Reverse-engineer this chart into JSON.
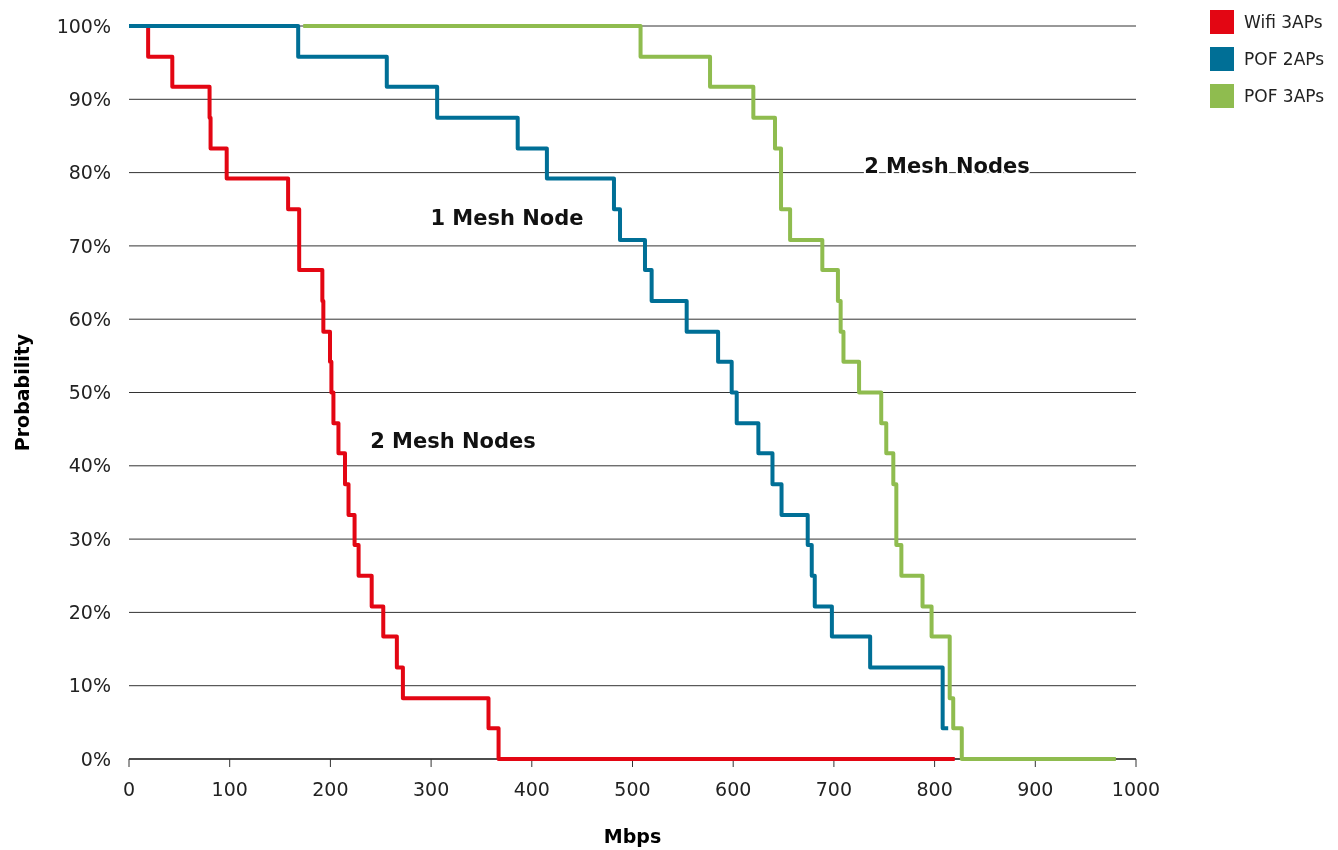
{
  "chart_data": {
    "type": "step",
    "xlabel": "Mbps",
    "ylabel": "Probability",
    "xlim": [
      0,
      1000
    ],
    "xticks": [
      0,
      100,
      200,
      300,
      400,
      500,
      600,
      700,
      800,
      900,
      1000
    ],
    "ylim": [
      0,
      100
    ],
    "yticks": [
      {
        "value": 0,
        "label": "0%"
      },
      {
        "value": 10,
        "label": "10%"
      },
      {
        "value": 20,
        "label": "20%"
      },
      {
        "value": 30,
        "label": "30%"
      },
      {
        "value": 40,
        "label": "40%"
      },
      {
        "value": 50,
        "label": "50%"
      },
      {
        "value": 60,
        "label": "60%"
      },
      {
        "value": 70,
        "label": "70%"
      },
      {
        "value": 80,
        "label": "80%"
      },
      {
        "value": 90,
        "label": "90%"
      },
      {
        "value": 100,
        "label": "100%"
      }
    ],
    "grid": "y",
    "legend": "top right",
    "marker": "none",
    "line_style": "solid",
    "series": [
      {
        "name": "Wifi 3APs",
        "color": "#e30613",
        "x": [
          19,
          19,
          43,
          80,
          81,
          97,
          158,
          169,
          192,
          193,
          199.6,
          201,
          203,
          208,
          214.5,
          218,
          224,
          228,
          241,
          252.5,
          266,
          272,
          357,
          367,
          820
        ],
        "values": [
          100,
          95.8,
          91.7,
          87.5,
          83.3,
          79.2,
          75,
          66.7,
          62.5,
          58.3,
          54.2,
          50,
          45.8,
          41.7,
          37.5,
          33.3,
          29.2,
          25,
          20.8,
          16.7,
          12.5,
          8.3,
          4.2,
          0,
          0
        ]
      },
      {
        "name": "POF 2APs",
        "color": "#006f96",
        "x": [
          0,
          168,
          256,
          306,
          386,
          415,
          481.6,
          487.6,
          512.4,
          519,
          553.8,
          585,
          598.5,
          603.5,
          625,
          639,
          648,
          674,
          678,
          681,
          698,
          736,
          808,
          813.5
        ],
        "values": [
          100,
          95.8,
          91.7,
          87.5,
          83.3,
          79.2,
          75,
          70.8,
          66.7,
          62.5,
          58.3,
          54.2,
          50,
          45.8,
          41.7,
          37.5,
          33.3,
          29.2,
          25,
          20.8,
          16.7,
          12.5,
          4.2,
          4.2
        ]
      },
      {
        "name": "POF 3APs",
        "color": "#8fbc4f",
        "x": [
          173,
          508,
          577,
          620,
          641.5,
          647.5,
          656.5,
          688.5,
          704,
          706.7,
          709.5,
          725,
          747,
          752,
          759,
          762,
          767,
          788,
          797,
          815,
          818.5,
          827,
          980
        ],
        "values": [
          100,
          95.8,
          91.7,
          87.5,
          83.3,
          75,
          70.8,
          66.7,
          62.5,
          58.3,
          54.2,
          50,
          45.8,
          41.7,
          37.5,
          29.2,
          25,
          20.8,
          16.7,
          8.3,
          4.2,
          0,
          0
        ]
      }
    ],
    "annotations": [
      "1 Mesh Node",
      "2 Mesh Nodes",
      "2 Mesh Nodes"
    ]
  }
}
